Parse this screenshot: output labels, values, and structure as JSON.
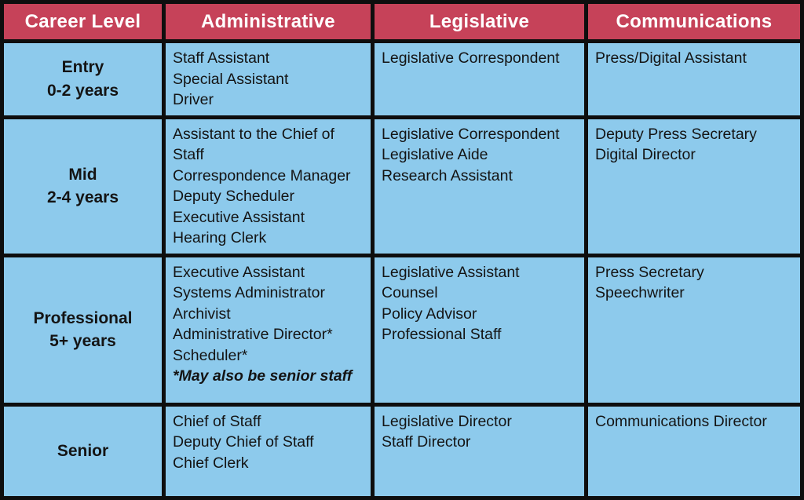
{
  "colors": {
    "header_bg": "#C64259",
    "cell_bg": "#8DCAEC",
    "border": "#0E0E0E",
    "header_text": "#FFFFFF",
    "body_text": "#141414"
  },
  "table": {
    "columns": [
      "Career Level",
      "Administrative",
      "Legislative",
      "Communications"
    ],
    "rows": [
      {
        "level": "Entry",
        "years": "0-2 years",
        "administrative": [
          "Staff Assistant",
          "Special Assistant",
          "Driver"
        ],
        "legislative": [
          "Legislative Correspondent"
        ],
        "communications": [
          "Press/Digital Assistant"
        ]
      },
      {
        "level": "Mid",
        "years": "2-4 years",
        "administrative": [
          "Assistant to the Chief of Staff",
          "Correspondence Manager",
          "Deputy Scheduler",
          "Executive Assistant",
          "Hearing Clerk"
        ],
        "legislative": [
          "Legislative Correspondent",
          "Legislative Aide",
          "Research Assistant"
        ],
        "communications": [
          "Deputy Press Secretary",
          "Digital Director"
        ]
      },
      {
        "level": "Professional",
        "years": "5+ years",
        "administrative": [
          "Executive Assistant",
          "Systems Administrator",
          "Archivist",
          "Administrative Director*",
          "Scheduler*"
        ],
        "administrative_note": "*May also be senior staff",
        "legislative": [
          "Legislative Assistant",
          "Counsel",
          "Policy Advisor",
          "Professional Staff"
        ],
        "communications": [
          "Press Secretary",
          "Speechwriter"
        ]
      },
      {
        "level": "Senior",
        "years": "",
        "administrative": [
          "Chief of Staff",
          "Deputy Chief of Staff",
          "Chief Clerk"
        ],
        "legislative": [
          "Legislative Director",
          "Staff Director"
        ],
        "communications": [
          "Communications Director"
        ]
      }
    ]
  }
}
